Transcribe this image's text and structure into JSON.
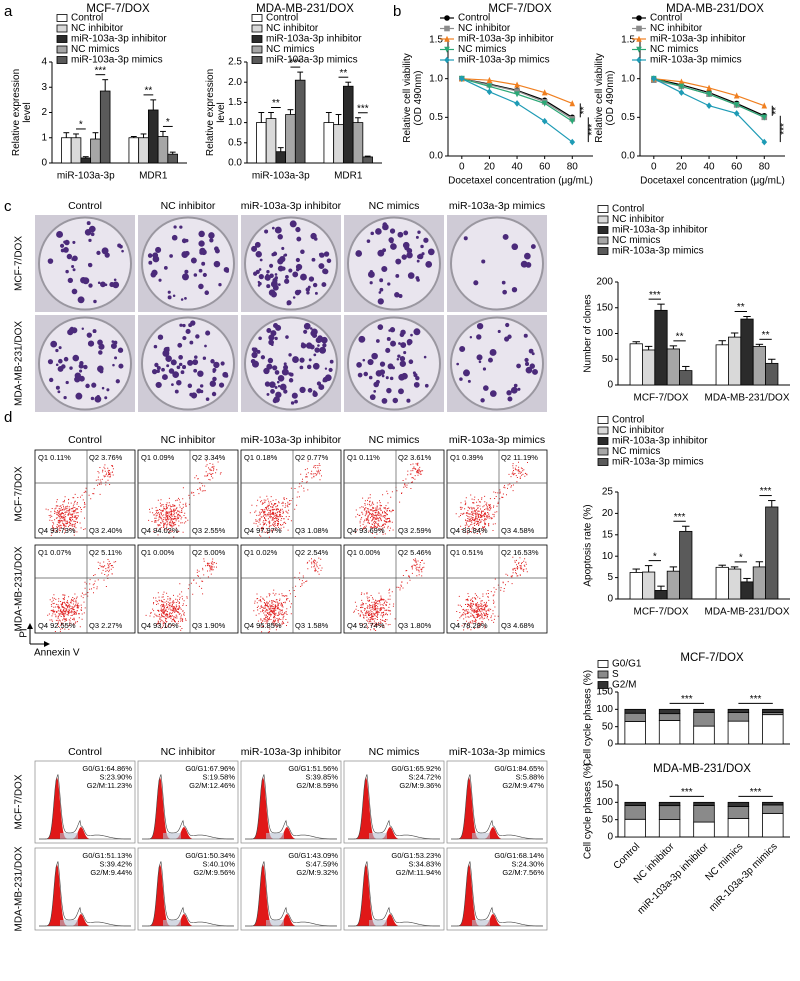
{
  "panel_labels": [
    "a",
    "b",
    "c",
    "d"
  ],
  "chart_data": [
    {
      "type": "bar",
      "title": "MCF-7/DOX",
      "y_label": [
        "Relative expression",
        "level"
      ],
      "categories": [
        "miR-103a-3p",
        "MDR1"
      ],
      "series": [
        {
          "name": "Control",
          "color": "#ffffff",
          "values": [
            1.0,
            1.0
          ],
          "errors": [
            0.2,
            0.05
          ]
        },
        {
          "name": "NC inhibitor",
          "color": "#d9d9d9",
          "values": [
            1.0,
            1.0
          ],
          "errors": [
            0.15,
            0.15
          ]
        },
        {
          "name": "miR-103a-3p inhibitor",
          "color": "#2b2b2b",
          "values": [
            0.2,
            2.1
          ],
          "errors": [
            0.05,
            0.4
          ]
        },
        {
          "name": "NC mimics",
          "color": "#a6a6a6",
          "values": [
            0.95,
            1.05
          ],
          "errors": [
            0.25,
            0.2
          ]
        },
        {
          "name": "miR-103a-3p mimics",
          "color": "#5a5a5a",
          "values": [
            2.85,
            0.35
          ],
          "errors": [
            0.45,
            0.08
          ]
        }
      ],
      "ylim": [
        0,
        4
      ],
      "yticks": [
        0,
        1,
        2,
        3,
        4
      ],
      "legend": true,
      "annotations": [
        {
          "label": "*",
          "category": 0,
          "series": [
            1,
            2
          ]
        },
        {
          "label": "***",
          "category": 0,
          "series": [
            3,
            4
          ]
        },
        {
          "label": "**",
          "category": 1,
          "series": [
            1,
            2
          ]
        },
        {
          "label": "*",
          "category": 1,
          "series": [
            3,
            4
          ]
        }
      ]
    },
    {
      "type": "bar",
      "title": "MDA-MB-231/DOX",
      "y_label": [
        "Relative expression",
        "level"
      ],
      "categories": [
        "miR-103a-3p",
        "MDR1"
      ],
      "series": [
        {
          "name": "Control",
          "color": "#ffffff",
          "values": [
            1.0,
            1.0
          ],
          "errors": [
            0.25,
            0.25
          ]
        },
        {
          "name": "NC inhibitor",
          "color": "#d9d9d9",
          "values": [
            1.1,
            0.95
          ],
          "errors": [
            0.15,
            0.25
          ]
        },
        {
          "name": "miR-103a-3p inhibitor",
          "color": "#2b2b2b",
          "values": [
            0.28,
            1.9
          ],
          "errors": [
            0.1,
            0.1
          ]
        },
        {
          "name": "NC mimics",
          "color": "#a6a6a6",
          "values": [
            1.2,
            1.0
          ],
          "errors": [
            0.12,
            0.12
          ]
        },
        {
          "name": "miR-103a-3p mimics",
          "color": "#5a5a5a",
          "values": [
            2.05,
            0.15
          ],
          "errors": [
            0.2,
            0.02
          ]
        }
      ],
      "ylim": [
        0,
        2.5
      ],
      "yticks": [
        {
          "value": 0,
          "label": "0.0"
        },
        0.5,
        {
          "value": 1,
          "label": "1.0"
        },
        1.5,
        {
          "value": 2,
          "label": "2.0"
        },
        2.5
      ],
      "legend": true,
      "annotations": [
        {
          "label": "**",
          "category": 0,
          "series": [
            1,
            2
          ]
        },
        {
          "label": "***",
          "category": 0,
          "series": [
            3,
            4
          ]
        },
        {
          "label": "**",
          "category": 1,
          "series": [
            1,
            2
          ]
        },
        {
          "label": "***",
          "category": 1,
          "series": [
            3,
            4
          ]
        }
      ]
    },
    {
      "type": "line",
      "title": "MCF-7/DOX",
      "y_label": [
        "Relative cell viability",
        "(OD 490nm)"
      ],
      "x_label": "Docetaxel concentration (μg/mL)",
      "x": [
        0,
        20,
        40,
        60,
        80
      ],
      "xlim": [
        -10,
        95
      ],
      "xticks": [
        0,
        20,
        40,
        60,
        80
      ],
      "series": [
        {
          "name": "Control",
          "color": "#000000",
          "marker": "circle",
          "values": [
            1.0,
            0.93,
            0.85,
            0.72,
            0.5
          ]
        },
        {
          "name": "NC inhibitor",
          "color": "#8c8c8c",
          "marker": "square",
          "values": [
            1.0,
            0.92,
            0.84,
            0.7,
            0.48
          ]
        },
        {
          "name": "miR-103a-3p inhibitor",
          "color": "#f07f1f",
          "marker": "triangle",
          "values": [
            1.0,
            0.98,
            0.92,
            0.82,
            0.68
          ]
        },
        {
          "name": "NC mimics",
          "color": "#2aa876",
          "marker": "triangle-down",
          "values": [
            1.0,
            0.9,
            0.8,
            0.68,
            0.45
          ]
        },
        {
          "name": "miR-103a-3p mimics",
          "color": "#1e9bb5",
          "marker": "diamond",
          "values": [
            1.0,
            0.83,
            0.68,
            0.45,
            0.18
          ]
        }
      ],
      "ylim": [
        0,
        1.5
      ],
      "yticks": [
        {
          "value": 0,
          "label": "0.0"
        },
        0.5,
        {
          "value": 1,
          "label": "1.0"
        },
        1.5
      ],
      "legend": true,
      "annotations": [
        {
          "label": "**",
          "series": [
            2,
            0
          ]
        },
        {
          "label": "***",
          "series": [
            0,
            4
          ]
        }
      ]
    },
    {
      "type": "line",
      "title": "MDA-MB-231/DOX",
      "y_label": [
        "Relative cell viability",
        "(OD 490nm)"
      ],
      "x_label": "Docetaxel concentration (μg/mL)",
      "x": [
        0,
        20,
        40,
        60,
        80
      ],
      "xlim": [
        -10,
        95
      ],
      "xticks": [
        0,
        20,
        40,
        60,
        80
      ],
      "series": [
        {
          "name": "Control",
          "color": "#000000",
          "marker": "circle",
          "values": [
            1.0,
            0.92,
            0.82,
            0.68,
            0.52
          ]
        },
        {
          "name": "NC inhibitor",
          "color": "#8c8c8c",
          "marker": "square",
          "values": [
            0.98,
            0.9,
            0.8,
            0.66,
            0.5
          ]
        },
        {
          "name": "miR-103a-3p inhibitor",
          "color": "#f07f1f",
          "marker": "triangle",
          "values": [
            1.0,
            0.96,
            0.88,
            0.78,
            0.65
          ]
        },
        {
          "name": "NC mimics",
          "color": "#2aa876",
          "marker": "triangle-down",
          "values": [
            1.0,
            0.9,
            0.8,
            0.66,
            0.5
          ]
        },
        {
          "name": "miR-103a-3p mimics",
          "color": "#1e9bb5",
          "marker": "diamond",
          "values": [
            1.0,
            0.82,
            0.65,
            0.55,
            0.18
          ]
        }
      ],
      "ylim": [
        0,
        1.5
      ],
      "yticks": [
        {
          "value": 0,
          "label": "0.0"
        },
        0.5,
        {
          "value": 1,
          "label": "1.0"
        },
        1.5
      ],
      "legend": true,
      "annotations": [
        {
          "label": "**",
          "series": [
            2,
            0
          ]
        },
        {
          "label": "***",
          "series": [
            0,
            4
          ]
        }
      ]
    },
    {
      "type": "bar",
      "y_label": [
        "Number of clones"
      ],
      "categories": [
        "MCF-7/DOX",
        "MDA-MB-231/DOX"
      ],
      "series": [
        {
          "name": "Control",
          "color": "#ffffff",
          "values": [
            80,
            78
          ],
          "errors": [
            4,
            8
          ]
        },
        {
          "name": "NC inhibitor",
          "color": "#d9d9d9",
          "values": [
            68,
            93
          ],
          "errors": [
            7,
            8
          ]
        },
        {
          "name": "miR-103a-3p inhibitor",
          "color": "#2b2b2b",
          "values": [
            145,
            128
          ],
          "errors": [
            12,
            5
          ]
        },
        {
          "name": "NC mimics",
          "color": "#a6a6a6",
          "values": [
            70,
            75
          ],
          "errors": [
            6,
            4
          ]
        },
        {
          "name": "miR-103a-3p mimics",
          "color": "#5a5a5a",
          "values": [
            28,
            42
          ],
          "errors": [
            8,
            8
          ]
        }
      ],
      "ylim": [
        0,
        200
      ],
      "yticks": [
        0,
        50,
        100,
        150,
        200
      ],
      "legend": true,
      "annotations": [
        {
          "label": "***",
          "category": 0,
          "series": [
            1,
            2
          ]
        },
        {
          "label": "**",
          "category": 0,
          "series": [
            3,
            4
          ]
        },
        {
          "label": "**",
          "category": 1,
          "series": [
            1,
            2
          ]
        },
        {
          "label": "**",
          "category": 1,
          "series": [
            3,
            4
          ]
        }
      ]
    },
    {
      "type": "bar",
      "y_label": [
        "Apoptosis rate (%)"
      ],
      "categories": [
        "MCF-7/DOX",
        "MDA-MB-231/DOX"
      ],
      "series": [
        {
          "name": "Control",
          "color": "#ffffff",
          "values": [
            6.2,
            7.4
          ],
          "errors": [
            0.8,
            0.5
          ]
        },
        {
          "name": "NC inhibitor",
          "color": "#d9d9d9",
          "values": [
            6.3,
            7.0
          ],
          "errors": [
            1.5,
            0.5
          ]
        },
        {
          "name": "miR-103a-3p inhibitor",
          "color": "#2b2b2b",
          "values": [
            2.0,
            4.0
          ],
          "errors": [
            1.0,
            0.8
          ]
        },
        {
          "name": "NC mimics",
          "color": "#a6a6a6",
          "values": [
            6.5,
            7.5
          ],
          "errors": [
            1.0,
            1.2
          ]
        },
        {
          "name": "miR-103a-3p mimics",
          "color": "#5a5a5a",
          "values": [
            15.8,
            21.5
          ],
          "errors": [
            1.2,
            1.5
          ]
        }
      ],
      "ylim": [
        0,
        25
      ],
      "yticks": [
        0,
        5,
        10,
        15,
        20,
        25
      ],
      "legend": true,
      "annotations": [
        {
          "label": "*",
          "category": 0,
          "series": [
            1,
            2
          ]
        },
        {
          "label": "***",
          "category": 0,
          "series": [
            3,
            4
          ]
        },
        {
          "label": "*",
          "category": 1,
          "series": [
            1,
            2
          ]
        },
        {
          "label": "***",
          "category": 1,
          "series": [
            3,
            4
          ]
        }
      ]
    },
    {
      "type": "stacked_bar",
      "title": "MCF-7/DOX",
      "y_label": [
        "Cell cycle phases (%)"
      ],
      "series": [
        {
          "name": "G0/G1",
          "color": "#ffffff",
          "values": [
            64.86,
            67.96,
            51.56,
            65.92,
            84.65
          ]
        },
        {
          "name": "S",
          "color": "#8a8a8a",
          "values": [
            23.9,
            19.58,
            39.85,
            24.72,
            5.88
          ]
        },
        {
          "name": "G2/M",
          "color": "#333333",
          "values": [
            11.23,
            12.46,
            8.59,
            9.36,
            9.47
          ]
        }
      ],
      "ylim": [
        0,
        150
      ],
      "yticks": [
        0,
        50,
        100,
        150
      ],
      "legend": true,
      "annotations": [
        {
          "label": "***",
          "categories": [
            1,
            2
          ]
        },
        {
          "label": "***",
          "categories": [
            3,
            4
          ]
        }
      ]
    },
    {
      "type": "stacked_bar",
      "title": "MDA-MB-231/DOX",
      "y_label": [
        "Cell cycle phases (%)"
      ],
      "categories": [
        "Control",
        "NC inhibitor",
        "miR-103a-3p inhibitor",
        "NC mimics",
        "miR-103a-3p mimics"
      ],
      "series": [
        {
          "color": "#ffffff",
          "values": [
            51.13,
            50.34,
            43.09,
            53.23,
            68.14
          ]
        },
        {
          "color": "#8a8a8a",
          "values": [
            39.42,
            40.1,
            47.59,
            34.83,
            24.3
          ]
        },
        {
          "color": "#333333",
          "values": [
            9.44,
            9.56,
            9.32,
            11.94,
            7.56
          ]
        }
      ],
      "ylim": [
        0,
        150
      ],
      "yticks": [
        0,
        50,
        100,
        150
      ],
      "legend": false,
      "annotations": [
        {
          "label": "***",
          "categories": [
            1,
            2
          ]
        },
        {
          "label": "***",
          "categories": [
            3,
            4
          ]
        }
      ]
    }
  ],
  "colony_assay": {
    "columns": [
      "Control",
      "NC inhibitor",
      "miR-103a-3p inhibitor",
      "NC mimics",
      "miR-103a-3p mimics"
    ],
    "rows": [
      "MCF-7/DOX",
      "MDA-MB-231/DOX"
    ]
  },
  "flow_cytometry": {
    "columns": [
      "Control",
      "NC inhibitor",
      "miR-103a-3p inhibitor",
      "NC mimics",
      "miR-103a-3p mimics"
    ],
    "rows": [
      "MCF-7/DOX",
      "MDA-MB-231/DOX"
    ],
    "y_axis_label": "PI",
    "x_axis_label": "Annexin V",
    "plots": [
      [
        [
          "Q1 0.11%",
          "Q2 3.76%",
          "Q4 93.73%",
          "Q3 2.40%"
        ],
        [
          "Q1 0.09%",
          "Q2 3.34%",
          "Q4 94.02%",
          "Q3 2.55%"
        ],
        [
          "Q1 0.18%",
          "Q2 0.77%",
          "Q4 97.97%",
          "Q3 1.08%"
        ],
        [
          "Q1 0.11%",
          "Q2 3.61%",
          "Q4 93.69%",
          "Q3 2.59%"
        ],
        [
          "Q1 0.39%",
          "Q2 11.19%",
          "Q4 83.84%",
          "Q3 4.58%"
        ]
      ],
      [
        [
          "Q1 0.07%",
          "Q2 5.11%",
          "Q4 92.55%",
          "Q3 2.27%"
        ],
        [
          "Q1 0.00%",
          "Q2 5.00%",
          "Q4 93.10%",
          "Q3 1.90%"
        ],
        [
          "Q1 0.02%",
          "Q2 2.54%",
          "Q4 95.85%",
          "Q3 1.58%"
        ],
        [
          "Q1 0.00%",
          "Q2 5.46%",
          "Q4 92.74%",
          "Q3 1.80%"
        ],
        [
          "Q1 0.51%",
          "Q2 16.53%",
          "Q4 78.28%",
          "Q3 4.68%"
        ]
      ]
    ]
  },
  "cell_cycle_histograms": {
    "columns": [
      "Control",
      "NC inhibitor",
      "miR-103a-3p inhibitor",
      "NC mimics",
      "miR-103a-3p mimics"
    ],
    "rows": [
      "MCF-7/DOX",
      "MDA-MB-231/DOX"
    ],
    "plots": [
      [
        [
          "G0/G1:64.86%",
          "S:23.90%",
          "G2/M:11.23%"
        ],
        [
          "G0/G1:67.96%",
          "S:19.58%",
          "G2/M:12.46%"
        ],
        [
          "G0/G1:51.56%",
          "S:39.85%",
          "G2/M:8.59%"
        ],
        [
          "G0/G1:65.92%",
          "S:24.72%",
          "G2/M:9.36%"
        ],
        [
          "G0/G1:84.65%",
          "S:5.88%",
          "G2/M:9.47%"
        ]
      ],
      [
        [
          "G0/G1:51.13%",
          "S:39.42%",
          "G2/M:9.44%"
        ],
        [
          "G0/G1:50.34%",
          "S:40.10%",
          "G2/M:9.56%"
        ],
        [
          "G0/G1:43.09%",
          "S:47.59%",
          "G2/M:9.32%"
        ],
        [
          "G0/G1:53.23%",
          "S:34.83%",
          "G2/M:11.94%"
        ],
        [
          "G0/G1:68.14%",
          "S:24.30%",
          "G2/M:7.56%"
        ]
      ]
    ]
  }
}
